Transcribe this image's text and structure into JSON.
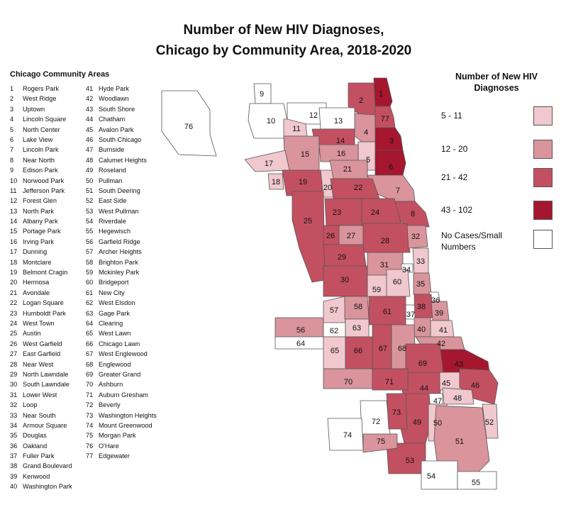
{
  "title": {
    "line1": "Number of New HIV Diagnoses,",
    "line2": "Chicago by Community Area, 2018-2020"
  },
  "community_areas": {
    "heading": "Chicago Community Areas",
    "items": [
      {
        "num": "1",
        "name": "Rogers Park"
      },
      {
        "num": "2",
        "name": "West Ridge"
      },
      {
        "num": "3",
        "name": "Uptown"
      },
      {
        "num": "4",
        "name": "Lincoln Square"
      },
      {
        "num": "5",
        "name": "North Center"
      },
      {
        "num": "6",
        "name": "Lake View"
      },
      {
        "num": "7",
        "name": "Lincoln Park"
      },
      {
        "num": "8",
        "name": "Near North"
      },
      {
        "num": "9",
        "name": "Edison Park"
      },
      {
        "num": "10",
        "name": "Norwood Park"
      },
      {
        "num": "11",
        "name": "Jefferson Park"
      },
      {
        "num": "12",
        "name": "Forest Glen"
      },
      {
        "num": "13",
        "name": "North Park"
      },
      {
        "num": "14",
        "name": "Albany Park"
      },
      {
        "num": "15",
        "name": "Portage Park"
      },
      {
        "num": "16",
        "name": "Irving Park"
      },
      {
        "num": "17",
        "name": "Dunning"
      },
      {
        "num": "18",
        "name": "Montclare"
      },
      {
        "num": "19",
        "name": "Belmont Cragin"
      },
      {
        "num": "20",
        "name": "Hermosa"
      },
      {
        "num": "21",
        "name": "Avondale"
      },
      {
        "num": "22",
        "name": "Logan Square"
      },
      {
        "num": "23",
        "name": "Humboldt Park"
      },
      {
        "num": "24",
        "name": "West Town"
      },
      {
        "num": "25",
        "name": "Austin"
      },
      {
        "num": "26",
        "name": "West Garfield"
      },
      {
        "num": "27",
        "name": "East Garfield"
      },
      {
        "num": "28",
        "name": "Near West"
      },
      {
        "num": "29",
        "name": "North Lawndale"
      },
      {
        "num": "30",
        "name": "South Lawndale"
      },
      {
        "num": "31",
        "name": "Lower West"
      },
      {
        "num": "32",
        "name": "Loop"
      },
      {
        "num": "33",
        "name": "Near South"
      },
      {
        "num": "34",
        "name": "Armour Square"
      },
      {
        "num": "35",
        "name": "Douglas"
      },
      {
        "num": "36",
        "name": "Oakland"
      },
      {
        "num": "37",
        "name": "Fuller Park"
      },
      {
        "num": "38",
        "name": "Grand Boulevard"
      },
      {
        "num": "39",
        "name": "Kenwood"
      },
      {
        "num": "40",
        "name": "Washington Park"
      },
      {
        "num": "41",
        "name": "Hyde Park"
      },
      {
        "num": "42",
        "name": "Woodlawn"
      },
      {
        "num": "43",
        "name": "South Shore"
      },
      {
        "num": "44",
        "name": "Chatham"
      },
      {
        "num": "45",
        "name": "Avalon Park"
      },
      {
        "num": "46",
        "name": "South Chicago"
      },
      {
        "num": "47",
        "name": "Burnside"
      },
      {
        "num": "48",
        "name": "Calumet Heights"
      },
      {
        "num": "49",
        "name": "Roseland"
      },
      {
        "num": "50",
        "name": "Pullman"
      },
      {
        "num": "51",
        "name": "South Deering"
      },
      {
        "num": "52",
        "name": "East Side"
      },
      {
        "num": "53",
        "name": "West Pullman"
      },
      {
        "num": "54",
        "name": "Riverdale"
      },
      {
        "num": "55",
        "name": "Hegewisch"
      },
      {
        "num": "56",
        "name": "Garfield Ridge"
      },
      {
        "num": "57",
        "name": "Archer Heights"
      },
      {
        "num": "58",
        "name": "Brighton Park"
      },
      {
        "num": "59",
        "name": "Mckinley Park"
      },
      {
        "num": "60",
        "name": "Bridgeport"
      },
      {
        "num": "61",
        "name": "New City"
      },
      {
        "num": "62",
        "name": "West Elsdon"
      },
      {
        "num": "63",
        "name": "Gage Park"
      },
      {
        "num": "64",
        "name": "Clearing"
      },
      {
        "num": "65",
        "name": "West Lawn"
      },
      {
        "num": "66",
        "name": "Chicago Lawn"
      },
      {
        "num": "67",
        "name": "West Englewood"
      },
      {
        "num": "68",
        "name": "Englewood"
      },
      {
        "num": "69",
        "name": "Greater Grand"
      },
      {
        "num": "70",
        "name": "Ashburn"
      },
      {
        "num": "71",
        "name": "Auburn Gresham"
      },
      {
        "num": "72",
        "name": "Beverly"
      },
      {
        "num": "73",
        "name": "Washington Heights"
      },
      {
        "num": "74",
        "name": "Mount Greenwood"
      },
      {
        "num": "75",
        "name": "Morgan Park"
      },
      {
        "num": "76",
        "name": "O'Hare"
      },
      {
        "num": "77",
        "name": "Edgewater"
      }
    ]
  },
  "legend": {
    "title_line1": "Number of New HIV",
    "title_line2": "Diagnoses",
    "items": [
      {
        "label": "5 - 11",
        "color": "#f0c8ce"
      },
      {
        "label": "12 - 20",
        "color": "#d9949c"
      },
      {
        "label": "21 - 42",
        "color": "#c35061"
      },
      {
        "label": "43 - 102",
        "color": "#a5172e"
      },
      {
        "label": "No Cases/Small Numbers",
        "color": "#ffffff"
      }
    ]
  },
  "map_classes": {
    "1": "43 - 102",
    "2": "21 - 42",
    "3": "43 - 102",
    "4": "12 - 20",
    "5": "5 - 11",
    "6": "43 - 102",
    "7": "12 - 20",
    "8": "21 - 42",
    "9": "No Cases/Small Numbers",
    "10": "No Cases/Small Numbers",
    "11": "5 - 11",
    "12": "No Cases/Small Numbers",
    "13": "No Cases/Small Numbers",
    "14": "21 - 42",
    "15": "12 - 20",
    "16": "12 - 20",
    "17": "5 - 11",
    "18": "5 - 11",
    "19": "21 - 42",
    "20": "5 - 11",
    "21": "12 - 20",
    "22": "21 - 42",
    "23": "21 - 42",
    "24": "21 - 42",
    "25": "21 - 42",
    "26": "21 - 42",
    "27": "12 - 20",
    "28": "21 - 42",
    "29": "21 - 42",
    "30": "21 - 42",
    "31": "12 - 20",
    "32": "12 - 20",
    "33": "5 - 11",
    "34": "No Cases/Small Numbers",
    "35": "12 - 20",
    "36": "No Cases/Small Numbers",
    "37": "No Cases/Small Numbers",
    "38": "21 - 42",
    "39": "12 - 20",
    "40": "12 - 20",
    "41": "5 - 11",
    "42": "12 - 20",
    "43": "43 - 102",
    "44": "21 - 42",
    "45": "5 - 11",
    "46": "21 - 42",
    "47": "No Cases/Small Numbers",
    "48": "5 - 11",
    "49": "21 - 42",
    "50": "5 - 11",
    "51": "12 - 20",
    "52": "5 - 11",
    "53": "21 - 42",
    "54": "No Cases/Small Numbers",
    "55": "No Cases/Small Numbers",
    "56": "12 - 20",
    "57": "5 - 11",
    "58": "12 - 20",
    "59": "5 - 11",
    "60": "5 - 11",
    "61": "21 - 42",
    "62": "No Cases/Small Numbers",
    "63": "5 - 11",
    "64": "No Cases/Small Numbers",
    "65": "5 - 11",
    "66": "21 - 42",
    "67": "21 - 42",
    "68": "12 - 20",
    "69": "21 - 42",
    "70": "12 - 20",
    "71": "21 - 42",
    "72": "No Cases/Small Numbers",
    "73": "21 - 42",
    "74": "No Cases/Small Numbers",
    "75": "12 - 20",
    "76": "No Cases/Small Numbers",
    "77": "21 - 42"
  }
}
